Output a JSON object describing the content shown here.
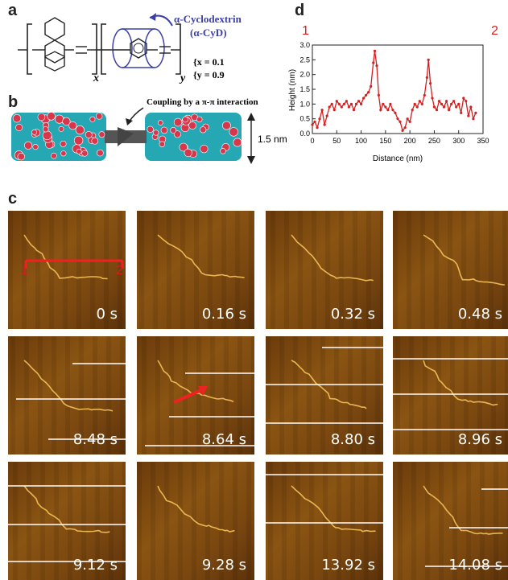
{
  "panel_a": {
    "letter": "a",
    "label": "α-Cyclodextrin",
    "label_abbr": "(α-CyD)",
    "sub_x": "x",
    "sub_y": "y",
    "x_eq": "x = 0.1",
    "y_eq": "y = 0.9"
  },
  "panel_b": {
    "letter": "b",
    "caption": "Coupling by a π-π interaction",
    "dimension": "1.5 nm"
  },
  "panel_c": {
    "letter": "c",
    "marker_start": "1",
    "marker_end": "2",
    "frames": [
      {
        "time": "0 s"
      },
      {
        "time": "0.16 s"
      },
      {
        "time": "0.32 s"
      },
      {
        "time": "0.48 s"
      },
      {
        "time": "8.48 s"
      },
      {
        "time": "8.64 s"
      },
      {
        "time": "8.80 s"
      },
      {
        "time": "8.96 s"
      },
      {
        "time": "9.12 s"
      },
      {
        "time": "9.28 s"
      },
      {
        "time": "13.92 s"
      },
      {
        "time": "14.08 s"
      }
    ]
  },
  "panel_d": {
    "letter": "d",
    "endpoint_left": "1",
    "endpoint_right": "2"
  },
  "chart_data": {
    "type": "line",
    "xlabel": "Distance (nm)",
    "ylabel": "Height (nm)",
    "xlim": [
      0,
      350
    ],
    "ylim": [
      0,
      3.0
    ],
    "xticks": [
      0,
      50,
      100,
      150,
      200,
      250,
      300,
      350
    ],
    "yticks": [
      0.0,
      0.5,
      1.0,
      1.5,
      2.0,
      2.5,
      3.0
    ],
    "color": "#d61f1f",
    "series": [
      {
        "x": [
          0,
          5,
          10,
          15,
          20,
          25,
          30,
          35,
          40,
          45,
          50,
          55,
          60,
          65,
          70,
          75,
          80,
          85,
          90,
          95,
          100,
          105,
          110,
          115,
          120,
          125,
          128,
          132,
          136,
          140,
          145,
          150,
          155,
          160,
          165,
          170,
          175,
          180,
          185,
          190,
          195,
          200,
          205,
          210,
          215,
          220,
          225,
          230,
          235,
          238,
          242,
          246,
          250,
          255,
          260,
          265,
          270,
          275,
          280,
          285,
          290,
          295,
          300,
          305,
          310,
          315,
          320,
          325,
          330,
          335
        ],
        "y": [
          0.3,
          0.4,
          0.2,
          0.5,
          0.8,
          0.3,
          0.6,
          0.9,
          1.0,
          0.8,
          1.1,
          1.0,
          0.9,
          1.0,
          1.1,
          0.9,
          1.0,
          0.8,
          1.0,
          1.1,
          1.0,
          1.2,
          1.3,
          1.4,
          1.6,
          2.4,
          2.8,
          2.3,
          1.3,
          0.8,
          1.0,
          0.9,
          0.8,
          1.0,
          0.8,
          0.7,
          0.5,
          0.4,
          0.1,
          0.2,
          0.5,
          0.4,
          0.8,
          1.0,
          0.9,
          1.1,
          1.0,
          1.3,
          1.9,
          2.5,
          1.7,
          1.2,
          0.9,
          0.8,
          1.1,
          1.0,
          0.9,
          1.1,
          0.8,
          1.0,
          1.1,
          0.9,
          1.0,
          0.7,
          1.2,
          1.1,
          0.6,
          0.9,
          0.5,
          0.7
        ]
      }
    ]
  }
}
